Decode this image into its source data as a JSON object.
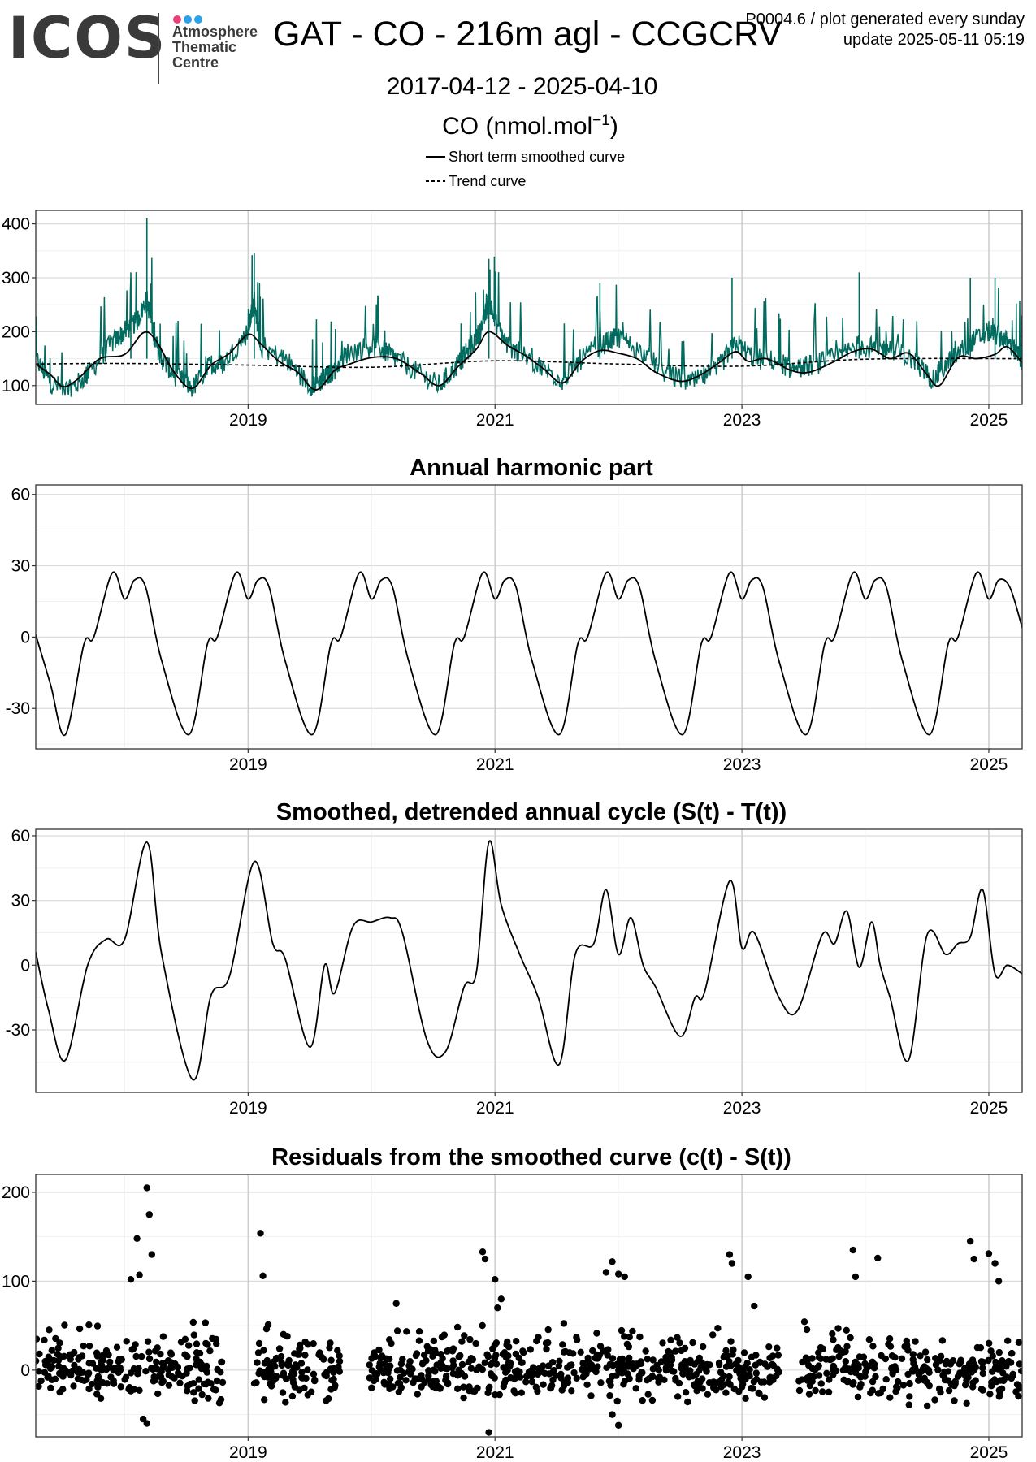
{
  "header": {
    "logo_text": "ICOS",
    "logo_subtitle": [
      "Atmosphere",
      "Thematic",
      "Centre"
    ],
    "logo_dot_colors": [
      "#e8407a",
      "#2aa1e8",
      "#2aa1e8"
    ],
    "title": "GAT - CO - 216m agl - CCGCRV",
    "meta_line1": "P0004.6 / plot generated every sunday",
    "meta_line2": "update  2025-05-11 05:19",
    "date_range": "2017-04-12 - 2025-04-10",
    "unit_label": "CO (nmol.mol",
    "unit_exponent": "−1",
    "unit_close": ")"
  },
  "legend": {
    "items": [
      {
        "label": "Short term smoothed curve",
        "style": "solid"
      },
      {
        "label": "Trend curve",
        "style": "dashed"
      }
    ]
  },
  "colors": {
    "observation_series": "#006b5e",
    "curves": "#000000",
    "grid": "#e6e6e6",
    "axis_frame": "#333333"
  },
  "chart_data": [
    {
      "type": "line",
      "title": "",
      "xlim": [
        2017.28,
        2025.27
      ],
      "ylim": [
        65,
        425
      ],
      "x_ticks": [
        2019,
        2021,
        2023,
        2025
      ],
      "x_tick_labels": [
        "2019",
        "2021",
        "2023",
        "2025"
      ],
      "y_ticks": [
        100,
        200,
        300,
        400
      ],
      "y_tick_labels": [
        "100",
        "200",
        "300",
        "400"
      ],
      "grid": true,
      "series": [
        {
          "kind": "observations",
          "style": "line",
          "x": [
            2017.28,
            2017.4,
            2017.55,
            2017.7,
            2017.9,
            2018.0,
            2018.1,
            2018.18,
            2018.25,
            2018.3,
            2018.4,
            2018.55,
            2018.7,
            2018.8,
            2019.0,
            2019.05,
            2019.1,
            2019.3,
            2019.5,
            2019.6,
            2019.7,
            2019.8,
            2020.0,
            2020.1,
            2020.2,
            2020.4,
            2020.55,
            2020.7,
            2020.8,
            2020.9,
            2020.95,
            2021.0,
            2021.1,
            2021.2,
            2021.4,
            2021.55,
            2021.7,
            2021.9,
            2022.0,
            2022.2,
            2022.4,
            2022.6,
            2022.8,
            2022.95,
            2023.1,
            2023.3,
            2023.4,
            2023.6,
            2023.8,
            2023.95,
            2024.1,
            2024.2,
            2024.4,
            2024.55,
            2024.7,
            2024.85,
            2025.0,
            2025.1,
            2025.2,
            2025.27
          ],
          "y": [
            150,
            105,
            90,
            120,
            180,
            200,
            220,
            260,
            180,
            150,
            120,
            95,
            140,
            140,
            200,
            260,
            170,
            150,
            100,
            110,
            130,
            160,
            175,
            165,
            150,
            120,
            100,
            140,
            170,
            210,
            260,
            220,
            175,
            160,
            130,
            110,
            150,
            180,
            190,
            160,
            120,
            105,
            130,
            180,
            150,
            145,
            130,
            140,
            155,
            175,
            165,
            170,
            145,
            110,
            150,
            180,
            200,
            190,
            170,
            145
          ]
        },
        {
          "kind": "short-term-smoothed-curve",
          "style": "solid",
          "x": [
            2017.28,
            2017.4,
            2017.5,
            2017.62,
            2017.8,
            2018.0,
            2018.15,
            2018.25,
            2018.4,
            2018.55,
            2018.7,
            2018.85,
            2019.0,
            2019.1,
            2019.25,
            2019.4,
            2019.55,
            2019.7,
            2019.8,
            2020.0,
            2020.2,
            2020.4,
            2020.55,
            2020.7,
            2020.85,
            2020.95,
            2021.1,
            2021.25,
            2021.4,
            2021.55,
            2021.7,
            2021.85,
            2022.0,
            2022.15,
            2022.3,
            2022.5,
            2022.65,
            2022.8,
            2022.95,
            2023.05,
            2023.2,
            2023.4,
            2023.55,
            2023.75,
            2023.9,
            2024.05,
            2024.2,
            2024.35,
            2024.5,
            2024.6,
            2024.75,
            2024.9,
            2025.05,
            2025.15,
            2025.27
          ],
          "y": [
            140,
            120,
            98,
            112,
            150,
            158,
            198,
            185,
            125,
            95,
            138,
            160,
            195,
            178,
            145,
            125,
            92,
            128,
            138,
            152,
            150,
            122,
            100,
            135,
            168,
            200,
            175,
            155,
            130,
            105,
            145,
            165,
            160,
            150,
            125,
            108,
            118,
            140,
            163,
            145,
            150,
            128,
            125,
            145,
            163,
            168,
            150,
            160,
            120,
            100,
            152,
            150,
            158,
            172,
            142
          ]
        },
        {
          "kind": "trend-curve",
          "style": "dashed",
          "x": [
            2017.28,
            2018.0,
            2019.0,
            2020.0,
            2021.0,
            2022.0,
            2023.0,
            2024.0,
            2025.27
          ],
          "y": [
            140,
            141,
            138,
            134,
            146,
            140,
            136,
            149,
            150
          ]
        }
      ]
    },
    {
      "type": "line",
      "title": "Annual harmonic part",
      "xlim": [
        2017.28,
        2025.27
      ],
      "ylim": [
        -47,
        64
      ],
      "x_ticks": [
        2019,
        2021,
        2023,
        2025
      ],
      "x_tick_labels": [
        "2019",
        "2021",
        "2023",
        "2025"
      ],
      "y_ticks": [
        -30,
        0,
        30,
        60
      ],
      "y_tick_labels": [
        "-30",
        "0",
        "30",
        "60"
      ],
      "grid": true,
      "series": [
        {
          "kind": "annual-harmonic",
          "x": [
            2017.28,
            2017.4,
            2017.52,
            2017.67,
            2017.75,
            2017.9,
            2018.0,
            2018.08,
            2018.17,
            2018.3,
            2018.52,
            2018.67,
            2018.75,
            2018.9,
            2019.0,
            2019.08,
            2019.17,
            2019.3,
            2019.52,
            2019.67,
            2019.75,
            2019.9,
            2020.0,
            2020.08,
            2020.17,
            2020.3,
            2020.52,
            2020.67,
            2020.75,
            2020.9,
            2021.0,
            2021.08,
            2021.17,
            2021.3,
            2021.52,
            2021.67,
            2021.75,
            2021.9,
            2022.0,
            2022.08,
            2022.17,
            2022.3,
            2022.52,
            2022.67,
            2022.75,
            2022.9,
            2023.0,
            2023.08,
            2023.17,
            2023.3,
            2023.52,
            2023.67,
            2023.75,
            2023.9,
            2024.0,
            2024.08,
            2024.17,
            2024.3,
            2024.52,
            2024.67,
            2024.75,
            2024.9,
            2025.0,
            2025.08,
            2025.17,
            2025.27
          ],
          "y": [
            1,
            -20,
            -41,
            -3,
            0,
            27,
            16,
            24,
            21,
            -10,
            -41,
            -3,
            0,
            27,
            16,
            24,
            21,
            -10,
            -41,
            -3,
            0,
            27,
            16,
            24,
            21,
            -10,
            -41,
            -3,
            0,
            27,
            16,
            24,
            21,
            -10,
            -41,
            -3,
            0,
            27,
            16,
            24,
            21,
            -10,
            -41,
            -3,
            0,
            27,
            16,
            24,
            21,
            -10,
            -41,
            -3,
            0,
            27,
            16,
            24,
            21,
            -10,
            -41,
            -3,
            0,
            27,
            16,
            24,
            21,
            4
          ]
        }
      ]
    },
    {
      "type": "line",
      "title": "Smoothed, detrended annual cycle (S(t) - T(t))",
      "xlim": [
        2017.28,
        2025.27
      ],
      "ylim": [
        -59,
        63
      ],
      "x_ticks": [
        2019,
        2021,
        2023,
        2025
      ],
      "x_tick_labels": [
        "2019",
        "2021",
        "2023",
        "2025"
      ],
      "y_ticks": [
        -30,
        0,
        30,
        60
      ],
      "y_tick_labels": [
        "-30",
        "0",
        "30",
        "60"
      ],
      "grid": true,
      "series": [
        {
          "kind": "detrended-cycle",
          "x": [
            2017.28,
            2017.38,
            2017.52,
            2017.7,
            2017.85,
            2018.0,
            2018.18,
            2018.3,
            2018.55,
            2018.7,
            2018.85,
            2019.05,
            2019.2,
            2019.3,
            2019.5,
            2019.62,
            2019.7,
            2019.85,
            2020.0,
            2020.15,
            2020.25,
            2020.45,
            2020.6,
            2020.75,
            2020.85,
            2020.95,
            2021.05,
            2021.2,
            2021.35,
            2021.52,
            2021.65,
            2021.8,
            2021.9,
            2022.0,
            2022.1,
            2022.2,
            2022.3,
            2022.5,
            2022.62,
            2022.7,
            2022.9,
            2023.0,
            2023.1,
            2023.3,
            2023.45,
            2023.65,
            2023.75,
            2023.85,
            2023.95,
            2024.05,
            2024.12,
            2024.2,
            2024.35,
            2024.5,
            2024.65,
            2024.75,
            2024.85,
            2024.95,
            2025.05,
            2025.15,
            2025.27
          ],
          "y": [
            6,
            -20,
            -44,
            0,
            12,
            12,
            57,
            5,
            -53,
            -14,
            -5,
            48,
            10,
            3,
            -38,
            0,
            -13,
            18,
            20,
            22,
            15,
            -35,
            -40,
            -10,
            -3,
            57,
            28,
            5,
            -15,
            -46,
            5,
            10,
            35,
            5,
            22,
            0,
            -10,
            -33,
            -15,
            -12,
            39,
            8,
            15,
            -15,
            -21,
            14,
            10,
            25,
            -1,
            20,
            0,
            -15,
            -44,
            14,
            5,
            10,
            13,
            35,
            -4,
            0,
            -4
          ]
        }
      ]
    },
    {
      "type": "scatter",
      "title": "Residuals from the smoothed curve (c(t) - S(t))",
      "xlim": [
        2017.28,
        2025.27
      ],
      "ylim": [
        -75,
        220
      ],
      "x_ticks": [
        2019,
        2021,
        2023,
        2025
      ],
      "x_tick_labels": [
        "2019",
        "2021",
        "2023",
        "2025"
      ],
      "y_ticks": [
        0,
        100,
        200
      ],
      "y_tick_labels": [
        "0",
        "100",
        "200"
      ],
      "grid": true,
      "data_gaps": [
        [
          2018.8,
          2019.05
        ],
        [
          2019.75,
          2019.97
        ],
        [
          2023.3,
          2023.45
        ]
      ],
      "series": [
        {
          "kind": "residual-points-notable",
          "x": [
            2018.18,
            2018.2,
            2018.22,
            2018.1,
            2018.05,
            2018.12,
            2019.1,
            2019.12,
            2020.2,
            2020.9,
            2020.92,
            2021.0,
            2021.05,
            2021.02,
            2021.9,
            2021.95,
            2022.0,
            2022.05,
            2022.9,
            2022.92,
            2023.05,
            2023.1,
            2023.9,
            2023.92,
            2024.1,
            2024.85,
            2024.88,
            2025.0,
            2025.05,
            2025.08,
            2018.15,
            2018.18,
            2021.95,
            2022.0,
            2020.95
          ],
          "y": [
            205,
            175,
            130,
            148,
            102,
            107,
            154,
            106,
            75,
            133,
            125,
            102,
            80,
            70,
            110,
            122,
            108,
            105,
            130,
            120,
            105,
            72,
            135,
            105,
            126,
            145,
            125,
            131,
            120,
            100,
            -55,
            -60,
            -50,
            -62,
            -70
          ]
        },
        {
          "kind": "residual-points-bulk",
          "count": 1200,
          "y_range": [
            -45,
            55
          ]
        }
      ]
    }
  ]
}
